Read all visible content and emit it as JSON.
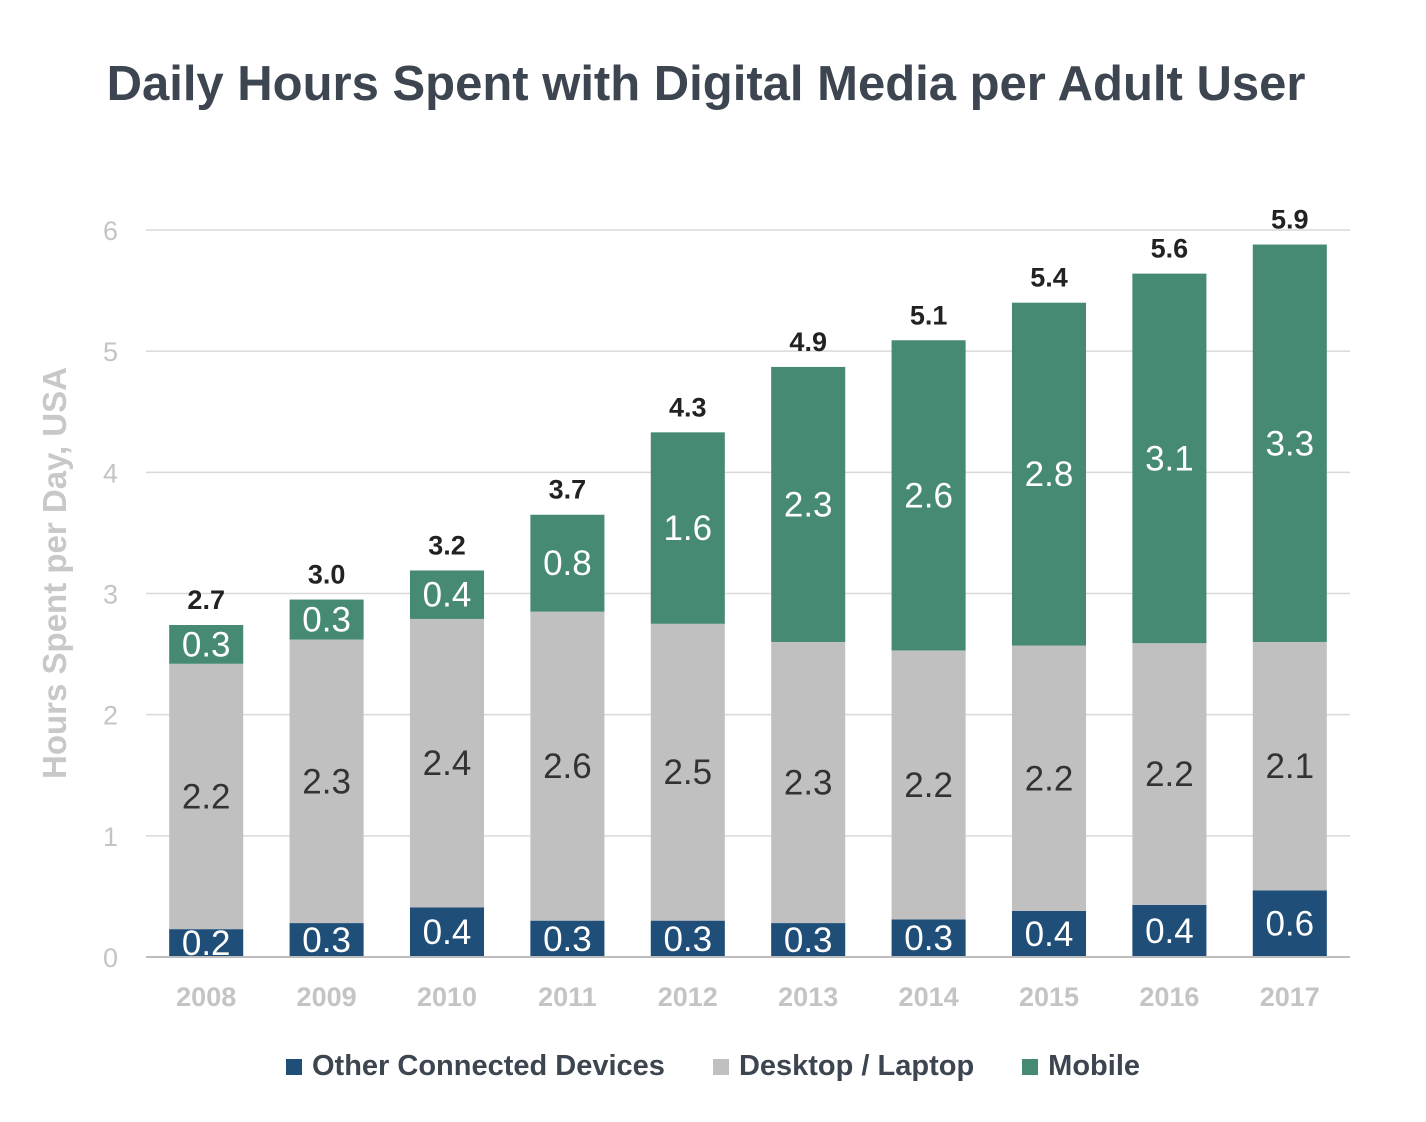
{
  "chart_data": {
    "type": "bar",
    "stacked": true,
    "title": "Daily Hours Spent with Digital Media per Adult User",
    "ylabel": "Hours Spent per Day, USA",
    "xlabel": "",
    "ylim": [
      0,
      6
    ],
    "yticks": [
      "0",
      "1",
      "2",
      "3",
      "4",
      "5",
      "6"
    ],
    "grid": true,
    "legend_position": "bottom",
    "categories": [
      "2008",
      "2009",
      "2010",
      "2011",
      "2012",
      "2013",
      "2014",
      "2015",
      "2016",
      "2017"
    ],
    "series": [
      {
        "name": "Other Connected Devices",
        "color": "#1f4e79",
        "label_color": "#ffffff",
        "values": [
          0.23,
          0.28,
          0.41,
          0.3,
          0.3,
          0.28,
          0.31,
          0.38,
          0.43,
          0.55
        ],
        "labels": [
          "0.2",
          "0.3",
          "0.4",
          "0.3",
          "0.3",
          "0.3",
          "0.3",
          "0.4",
          "0.4",
          "0.6"
        ]
      },
      {
        "name": "Desktop / Laptop",
        "color": "#c0c0c0",
        "label_color": "#333333",
        "values": [
          2.19,
          2.34,
          2.38,
          2.55,
          2.45,
          2.32,
          2.22,
          2.19,
          2.16,
          2.05
        ],
        "labels": [
          "2.2",
          "2.3",
          "2.4",
          "2.6",
          "2.5",
          "2.3",
          "2.2",
          "2.2",
          "2.2",
          "2.1"
        ]
      },
      {
        "name": "Mobile",
        "color": "#478a74",
        "label_color": "#ffffff",
        "values": [
          0.32,
          0.33,
          0.4,
          0.8,
          1.58,
          2.27,
          2.56,
          2.83,
          3.05,
          3.28
        ],
        "labels": [
          "0.3",
          "0.3",
          "0.4",
          "0.8",
          "1.6",
          "2.3",
          "2.6",
          "2.8",
          "3.1",
          "3.3"
        ]
      }
    ],
    "totals": [
      "2.7",
      "3.0",
      "3.2",
      "3.7",
      "4.3",
      "4.9",
      "5.1",
      "5.4",
      "5.6",
      "5.9"
    ]
  }
}
